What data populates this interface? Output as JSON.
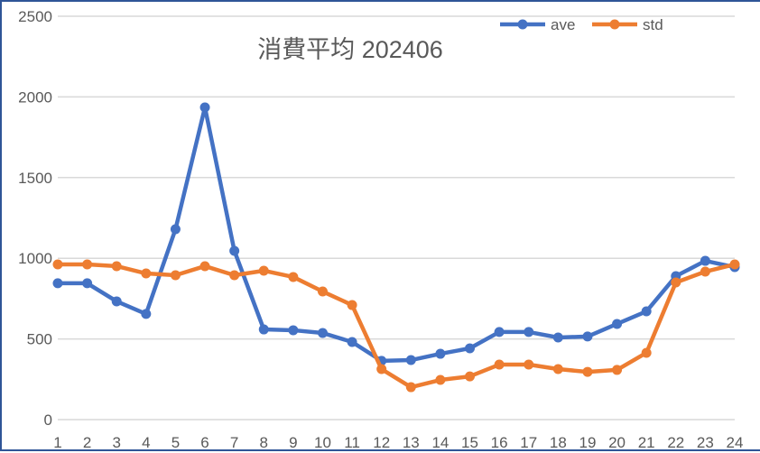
{
  "chart_data": {
    "type": "line",
    "title": "消費平均 202406",
    "xlabel": "",
    "ylabel": "",
    "x": [
      1,
      2,
      3,
      4,
      5,
      6,
      7,
      8,
      9,
      10,
      11,
      12,
      13,
      14,
      15,
      16,
      17,
      18,
      19,
      20,
      21,
      22,
      23,
      24
    ],
    "categories": [
      "1",
      "2",
      "3",
      "4",
      "5",
      "6",
      "7",
      "8",
      "9",
      "10",
      "11",
      "12",
      "13",
      "14",
      "15",
      "16",
      "17",
      "18",
      "19",
      "20",
      "21",
      "22",
      "23",
      "24"
    ],
    "series": [
      {
        "name": "ave",
        "color": "#4472c4",
        "values": [
          845,
          845,
          733,
          655,
          1180,
          1935,
          1046,
          559,
          554,
          537,
          481,
          364,
          369,
          408,
          442,
          543,
          543,
          509,
          515,
          593,
          671,
          889,
          984,
          945
        ]
      },
      {
        "name": "std",
        "color": "#ed7d31",
        "values": [
          962,
          962,
          951,
          906,
          895,
          951,
          895,
          923,
          884,
          794,
          710,
          313,
          201,
          246,
          268,
          341,
          341,
          313,
          296,
          308,
          414,
          850,
          917,
          962
        ]
      }
    ],
    "ylim": [
      0,
      2500
    ],
    "yticks": [
      0,
      500,
      1000,
      1500,
      2000,
      2500
    ],
    "grid": true,
    "legend_position": "top-right"
  },
  "legend": {
    "items": [
      {
        "label": "ave",
        "color": "#4472c4"
      },
      {
        "label": "std",
        "color": "#ed7d31"
      }
    ]
  }
}
